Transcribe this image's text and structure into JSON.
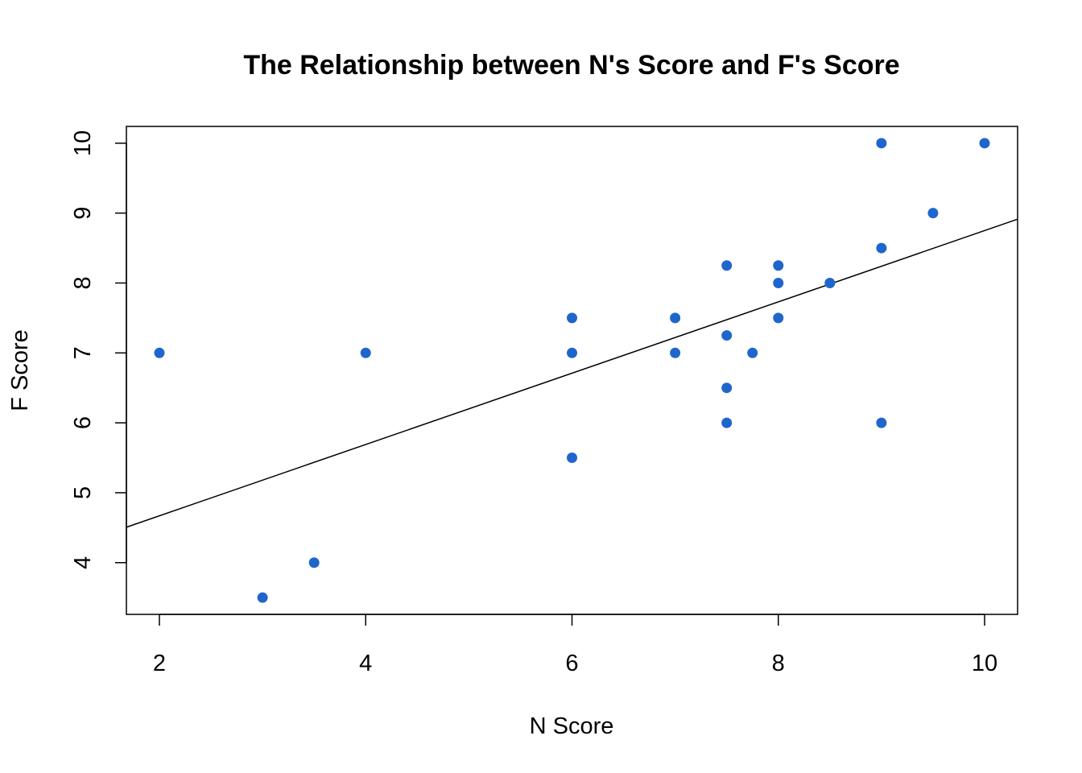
{
  "chart_data": {
    "type": "scatter",
    "title": "The Relationship between N's Score and F's Score",
    "xlabel": "N Score",
    "ylabel": "F Score",
    "xlim": [
      1.68,
      10.32
    ],
    "ylim": [
      3.26,
      10.24
    ],
    "x_ticks": [
      2,
      4,
      6,
      8,
      10
    ],
    "y_ticks": [
      4,
      5,
      6,
      7,
      8,
      9,
      10
    ],
    "grid": false,
    "legend": "none",
    "point_color": "#1f66cc",
    "line_color": "#000000",
    "points": [
      {
        "x": 2,
        "y": 7
      },
      {
        "x": 3,
        "y": 3.5
      },
      {
        "x": 3.5,
        "y": 4
      },
      {
        "x": 4,
        "y": 7
      },
      {
        "x": 6,
        "y": 7.5
      },
      {
        "x": 6,
        "y": 7
      },
      {
        "x": 6,
        "y": 5.5
      },
      {
        "x": 7,
        "y": 7.5
      },
      {
        "x": 7,
        "y": 7
      },
      {
        "x": 7.5,
        "y": 8.25
      },
      {
        "x": 7.5,
        "y": 7.25
      },
      {
        "x": 7.5,
        "y": 6.5
      },
      {
        "x": 7.5,
        "y": 6
      },
      {
        "x": 7.75,
        "y": 7
      },
      {
        "x": 8,
        "y": 8.25
      },
      {
        "x": 8,
        "y": 8
      },
      {
        "x": 8,
        "y": 7.5
      },
      {
        "x": 8.5,
        "y": 8
      },
      {
        "x": 9,
        "y": 10
      },
      {
        "x": 9,
        "y": 8.5
      },
      {
        "x": 9,
        "y": 6
      },
      {
        "x": 9.5,
        "y": 9
      },
      {
        "x": 10,
        "y": 10
      }
    ],
    "regression_line": {
      "intercept": 3.65,
      "slope": 0.51
    }
  }
}
